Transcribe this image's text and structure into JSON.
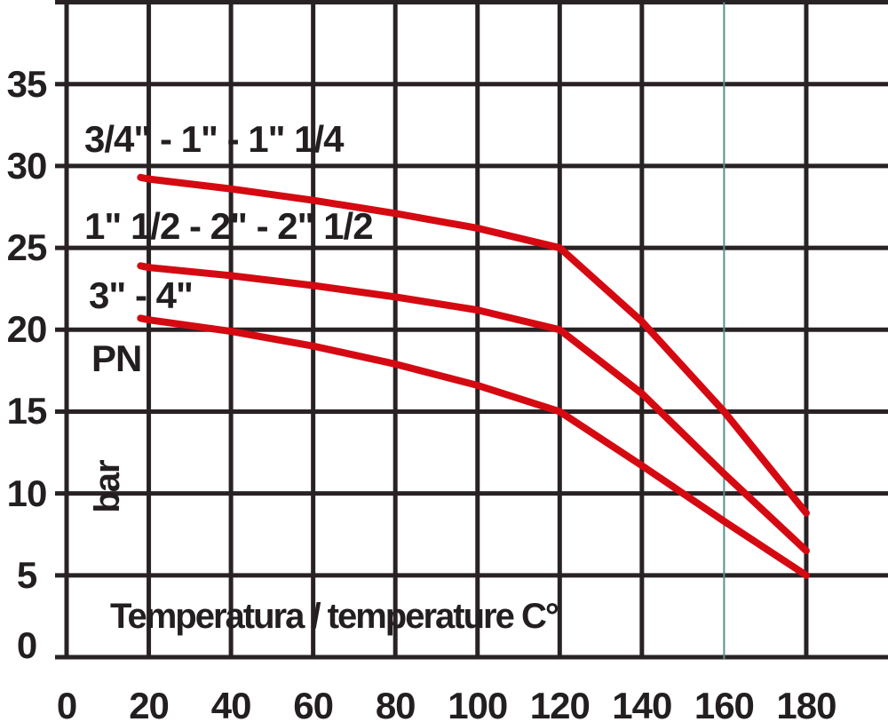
{
  "page": {
    "background": "#ffffff"
  },
  "chart_data": {
    "type": "line",
    "title": "",
    "xlabel": "Temperatura / temperature C°",
    "ylabel": "PN",
    "ylabel_unit": "bar",
    "x_ticks": [
      0,
      20,
      40,
      60,
      80,
      100,
      120,
      140,
      160,
      180
    ],
    "y_ticks": [
      0,
      5,
      10,
      15,
      20,
      25,
      30,
      35
    ],
    "xlim": [
      0,
      200
    ],
    "ylim": [
      0,
      40
    ],
    "grid": true,
    "legend_position": "inline-left",
    "accent_vline_x": 160,
    "colors": {
      "line": "#d50911",
      "grid": "#292225",
      "text": "#231f20",
      "accent_vline": "#55928f",
      "background": "#ffffff"
    },
    "x": [
      18,
      20,
      40,
      60,
      80,
      100,
      120,
      140,
      160,
      180
    ],
    "series": [
      {
        "name": "3/4\" - 1\" - 1\" 1/4",
        "values": [
          29.3,
          29.2,
          28.6,
          27.9,
          27.1,
          26.2,
          25.0,
          20.5,
          15.0,
          8.8
        ]
      },
      {
        "name": "1\" 1/2 - 2\" - 2\" 1/2",
        "values": [
          23.9,
          23.8,
          23.3,
          22.7,
          22.0,
          21.2,
          20.0,
          16.1,
          11.2,
          6.5
        ]
      },
      {
        "name": "3\" - 4\"",
        "values": [
          20.7,
          20.6,
          19.9,
          19.0,
          17.9,
          16.6,
          15.0,
          11.7,
          8.3,
          5.0
        ]
      }
    ]
  }
}
